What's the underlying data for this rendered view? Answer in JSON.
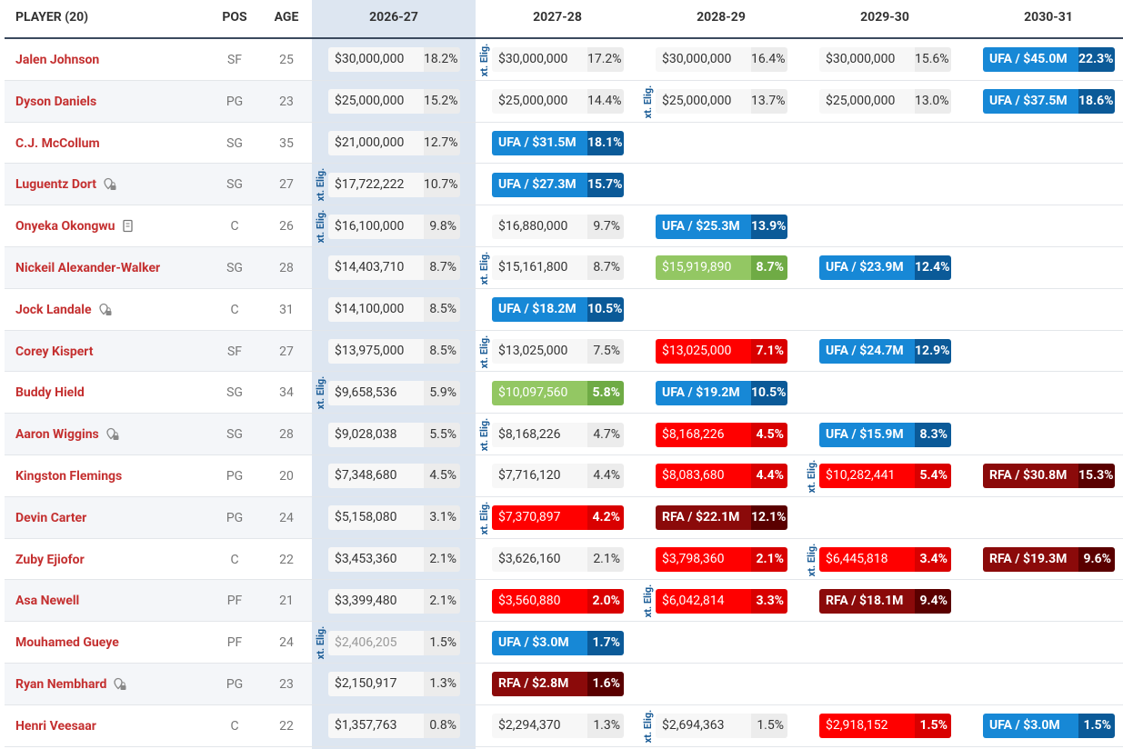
{
  "header": [
    "PLAYER (20)",
    "POS",
    "AGE",
    "2026-27",
    "2027-28",
    "2028-29",
    "2029-30",
    "2030-31"
  ],
  "ext_label": "xt. Elig.",
  "rows": [
    {
      "name": "Jalen Johnson",
      "pos": "SF",
      "age": "25",
      "cells": [
        {
          "amount": "$30,000,000",
          "pct": "18.2%",
          "style": "plain"
        },
        {
          "amount": "$30,000,000",
          "pct": "17.2%",
          "style": "plain",
          "ext": true
        },
        {
          "amount": "$30,000,000",
          "pct": "16.4%",
          "style": "plain"
        },
        {
          "amount": "$30,000,000",
          "pct": "15.6%",
          "style": "plain"
        },
        {
          "amount": "UFA / $45.0M",
          "pct": "22.3%",
          "style": "ufa"
        }
      ]
    },
    {
      "name": "Dyson Daniels",
      "pos": "PG",
      "age": "23",
      "cells": [
        {
          "amount": "$25,000,000",
          "pct": "15.2%",
          "style": "plain"
        },
        {
          "amount": "$25,000,000",
          "pct": "14.4%",
          "style": "plain"
        },
        {
          "amount": "$25,000,000",
          "pct": "13.7%",
          "style": "plain",
          "ext": true
        },
        {
          "amount": "$25,000,000",
          "pct": "13.0%",
          "style": "plain"
        },
        {
          "amount": "UFA / $37.5M",
          "pct": "18.6%",
          "style": "ufa"
        }
      ]
    },
    {
      "name": "C.J. McCollum",
      "pos": "SG",
      "age": "35",
      "cells": [
        {
          "amount": "$21,000,000",
          "pct": "12.7%",
          "style": "plain"
        },
        {
          "amount": "UFA / $31.5M",
          "pct": "18.1%",
          "style": "ufa"
        },
        null,
        null,
        null
      ]
    },
    {
      "name": "Luguentz Dort",
      "pos": "SG",
      "age": "27",
      "icon": "lock",
      "cells": [
        {
          "amount": "$17,722,222",
          "pct": "10.7%",
          "style": "plain",
          "ext": true
        },
        {
          "amount": "UFA / $27.3M",
          "pct": "15.7%",
          "style": "ufa"
        },
        null,
        null,
        null
      ]
    },
    {
      "name": "Onyeka Okongwu",
      "pos": "C",
      "age": "26",
      "icon": "doc",
      "cells": [
        {
          "amount": "$16,100,000",
          "pct": "9.8%",
          "style": "plain",
          "ext": true
        },
        {
          "amount": "$16,880,000",
          "pct": "9.7%",
          "style": "plain"
        },
        {
          "amount": "UFA / $25.3M",
          "pct": "13.9%",
          "style": "ufa"
        },
        null,
        null
      ]
    },
    {
      "name": "Nickeil Alexander-Walker",
      "pos": "SG",
      "age": "28",
      "cells": [
        {
          "amount": "$14,403,710",
          "pct": "8.7%",
          "style": "plain"
        },
        {
          "amount": "$15,161,800",
          "pct": "8.7%",
          "style": "plain",
          "ext": true
        },
        {
          "amount": "$15,919,890",
          "pct": "8.7%",
          "style": "green"
        },
        {
          "amount": "UFA / $23.9M",
          "pct": "12.4%",
          "style": "ufa"
        },
        null
      ]
    },
    {
      "name": "Jock Landale",
      "pos": "C",
      "age": "31",
      "icon": "lock",
      "cells": [
        {
          "amount": "$14,100,000",
          "pct": "8.5%",
          "style": "plain"
        },
        {
          "amount": "UFA / $18.2M",
          "pct": "10.5%",
          "style": "ufa"
        },
        null,
        null,
        null
      ]
    },
    {
      "name": "Corey Kispert",
      "pos": "SF",
      "age": "27",
      "cells": [
        {
          "amount": "$13,975,000",
          "pct": "8.5%",
          "style": "plain"
        },
        {
          "amount": "$13,025,000",
          "pct": "7.5%",
          "style": "plain",
          "ext": true
        },
        {
          "amount": "$13,025,000",
          "pct": "7.1%",
          "style": "red"
        },
        {
          "amount": "UFA / $24.7M",
          "pct": "12.9%",
          "style": "ufa"
        },
        null
      ]
    },
    {
      "name": "Buddy Hield",
      "pos": "SG",
      "age": "34",
      "cells": [
        {
          "amount": "$9,658,536",
          "pct": "5.9%",
          "style": "plain",
          "ext": true
        },
        {
          "amount": "$10,097,560",
          "pct": "5.8%",
          "style": "green"
        },
        {
          "amount": "UFA / $19.2M",
          "pct": "10.5%",
          "style": "ufa"
        },
        null,
        null
      ]
    },
    {
      "name": "Aaron Wiggins",
      "pos": "SG",
      "age": "28",
      "icon": "lock",
      "cells": [
        {
          "amount": "$9,028,038",
          "pct": "5.5%",
          "style": "plain"
        },
        {
          "amount": "$8,168,226",
          "pct": "4.7%",
          "style": "plain",
          "ext": true
        },
        {
          "amount": "$8,168,226",
          "pct": "4.5%",
          "style": "red"
        },
        {
          "amount": "UFA / $15.9M",
          "pct": "8.3%",
          "style": "ufa"
        },
        null
      ]
    },
    {
      "name": "Kingston Flemings",
      "pos": "PG",
      "age": "20",
      "cells": [
        {
          "amount": "$7,348,680",
          "pct": "4.5%",
          "style": "plain"
        },
        {
          "amount": "$7,716,120",
          "pct": "4.4%",
          "style": "plain"
        },
        {
          "amount": "$8,083,680",
          "pct": "4.4%",
          "style": "red"
        },
        {
          "amount": "$10,282,441",
          "pct": "5.4%",
          "style": "red",
          "ext": true
        },
        {
          "amount": "RFA / $30.8M",
          "pct": "15.3%",
          "style": "rfa"
        }
      ]
    },
    {
      "name": "Devin Carter",
      "pos": "PG",
      "age": "24",
      "cells": [
        {
          "amount": "$5,158,080",
          "pct": "3.1%",
          "style": "plain"
        },
        {
          "amount": "$7,370,897",
          "pct": "4.2%",
          "style": "red",
          "ext": true
        },
        {
          "amount": "RFA / $22.1M",
          "pct": "12.1%",
          "style": "rfa"
        },
        null,
        null
      ]
    },
    {
      "name": "Zuby Ejiofor",
      "pos": "C",
      "age": "22",
      "cells": [
        {
          "amount": "$3,453,360",
          "pct": "2.1%",
          "style": "plain"
        },
        {
          "amount": "$3,626,160",
          "pct": "2.1%",
          "style": "plain"
        },
        {
          "amount": "$3,798,360",
          "pct": "2.1%",
          "style": "red"
        },
        {
          "amount": "$6,445,818",
          "pct": "3.4%",
          "style": "red",
          "ext": true
        },
        {
          "amount": "RFA / $19.3M",
          "pct": "9.6%",
          "style": "rfa"
        }
      ]
    },
    {
      "name": "Asa Newell",
      "pos": "PF",
      "age": "21",
      "cells": [
        {
          "amount": "$3,399,480",
          "pct": "2.1%",
          "style": "plain"
        },
        {
          "amount": "$3,560,880",
          "pct": "2.0%",
          "style": "red"
        },
        {
          "amount": "$6,042,814",
          "pct": "3.3%",
          "style": "red",
          "ext": true
        },
        {
          "amount": "RFA / $18.1M",
          "pct": "9.4%",
          "style": "rfa"
        },
        null
      ]
    },
    {
      "name": "Mouhamed Gueye",
      "pos": "PF",
      "age": "24",
      "cells": [
        {
          "amount": "$2,406,205",
          "pct": "1.5%",
          "style": "muted",
          "ext": true
        },
        {
          "amount": "UFA / $3.0M",
          "pct": "1.7%",
          "style": "ufa"
        },
        null,
        null,
        null
      ]
    },
    {
      "name": "Ryan Nembhard",
      "pos": "PG",
      "age": "23",
      "icon": "lock",
      "cells": [
        {
          "amount": "$2,150,917",
          "pct": "1.3%",
          "style": "plain"
        },
        {
          "amount": "RFA / $2.8M",
          "pct": "1.6%",
          "style": "rfa"
        },
        null,
        null,
        null
      ]
    },
    {
      "name": "Henri Veesaar",
      "pos": "C",
      "age": "22",
      "cells": [
        {
          "amount": "$1,357,763",
          "pct": "0.8%",
          "style": "plain"
        },
        {
          "amount": "$2,294,370",
          "pct": "1.3%",
          "style": "plain"
        },
        {
          "amount": "$2,694,363",
          "pct": "1.5%",
          "style": "plain",
          "ext": true
        },
        {
          "amount": "$2,918,152",
          "pct": "1.5%",
          "style": "red"
        },
        {
          "amount": "UFA / $3.0M",
          "pct": "1.5%",
          "style": "ufa"
        }
      ]
    }
  ]
}
